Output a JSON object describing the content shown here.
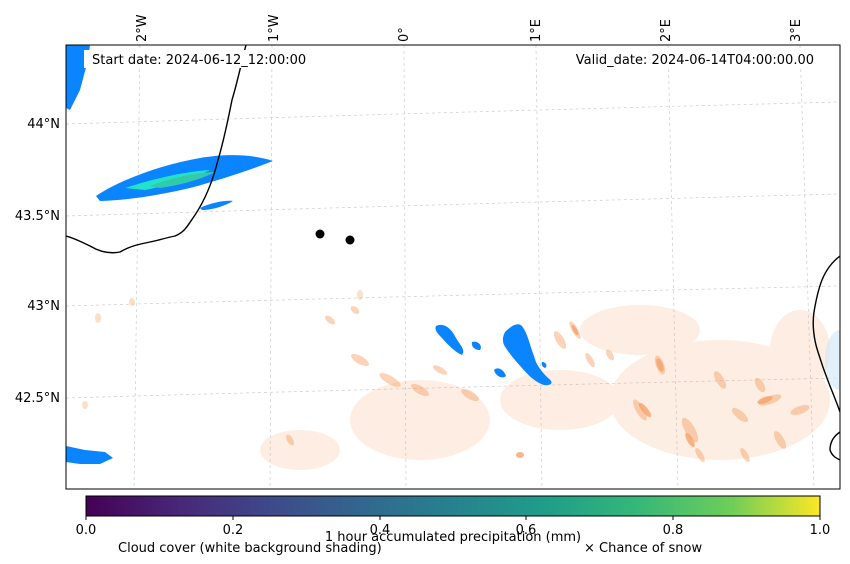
{
  "map": {
    "start_date": "Start date: 2024-06-12_12:00:00",
    "valid_date": "Valid_date: 2024-06-14T04:00:00.00",
    "lon_ticks": [
      "2°W",
      "1°W",
      "0°",
      "1°E",
      "2°E",
      "3°E"
    ],
    "lat_ticks": [
      "44°N",
      "43.5°N",
      "43°N",
      "42.5°N"
    ],
    "colors": {
      "precip_blue": "#0a84ff",
      "precip_cyan": "#22e3c8",
      "snow_orange": "#f5a066",
      "coastline": "#000000",
      "gridline": "#cccccc"
    }
  },
  "colorbar": {
    "label": "1 hour accumulated precipitation (mm)",
    "ticks": [
      "0.0",
      "0.2",
      "0.4",
      "0.6",
      "0.8",
      "1.0"
    ],
    "colormap": "viridis"
  },
  "legend": {
    "cloud_cover": "Cloud cover (white background shading)",
    "snow": "× Chance of snow"
  }
}
